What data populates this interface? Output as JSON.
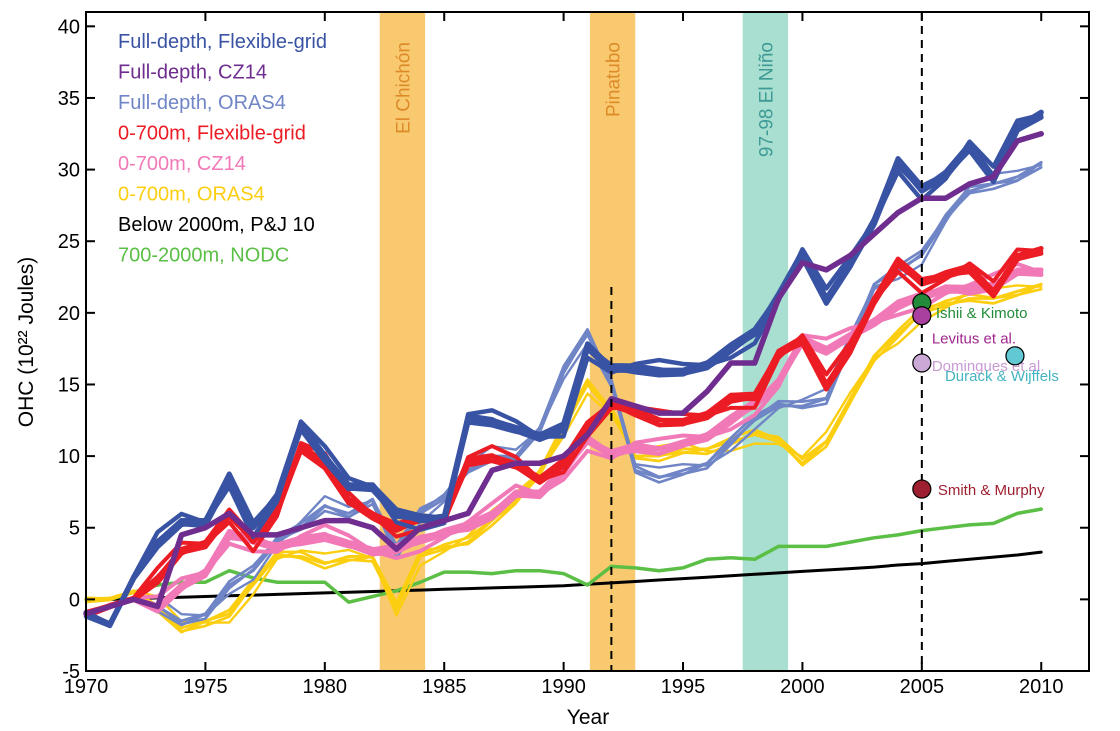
{
  "chart_data": {
    "type": "line",
    "xlabel": "Year",
    "ylabel": "OHC (10²² Joules)",
    "xlim": [
      1970,
      2012
    ],
    "ylim": [
      -5,
      41
    ],
    "xticks": [
      1970,
      1975,
      1980,
      1985,
      1990,
      1995,
      2000,
      2005,
      2010
    ],
    "yticks": [
      -5,
      0,
      5,
      10,
      15,
      20,
      25,
      30,
      35,
      40
    ],
    "x": [
      1970,
      1971,
      1972,
      1973,
      1974,
      1975,
      1976,
      1977,
      1978,
      1979,
      1980,
      1981,
      1982,
      1983,
      1984,
      1985,
      1986,
      1987,
      1988,
      1989,
      1990,
      1991,
      1992,
      1993,
      1994,
      1995,
      1996,
      1997,
      1998,
      1999,
      2000,
      2001,
      2002,
      2003,
      2004,
      2005,
      2006,
      2007,
      2008,
      2009,
      2010
    ],
    "grid": false,
    "legend_position": "top-left",
    "series": [
      {
        "name": "Full-depth, Flexible-grid",
        "color": "#3953a4",
        "width": 5.5,
        "values": [
          -1,
          -1.8,
          1.5,
          4,
          5.5,
          5.5,
          8.5,
          5,
          7,
          12,
          10,
          8,
          8,
          6,
          5.5,
          5.5,
          12.5,
          12.5,
          12,
          11.5,
          12,
          17.5,
          16,
          16,
          16,
          16,
          16.5,
          17.5,
          18.5,
          21,
          24,
          21,
          23.5,
          26.5,
          30.5,
          28.5,
          29.5,
          31.5,
          29.5,
          33,
          34
        ]
      },
      {
        "name": "Full-depth, CZ14",
        "color": "#6e2d8f",
        "width": 5.5,
        "values": [
          -1,
          -0.5,
          0,
          -0.5,
          4.5,
          5,
          6,
          4.5,
          4.5,
          5,
          5.5,
          5.5,
          5,
          3.5,
          5,
          5.5,
          6,
          9,
          9.5,
          9.5,
          10,
          11.5,
          14,
          13.5,
          13,
          13,
          14.5,
          16.5,
          16.5,
          21,
          23.5,
          23,
          24,
          25.5,
          27,
          28,
          28,
          29,
          29.5,
          32,
          32.5
        ]
      },
      {
        "name": "Full-depth, ORAS4",
        "color": "#6f85c6",
        "width": 3,
        "values": [
          -1,
          -0.5,
          0,
          -0.5,
          -1.5,
          -1,
          1,
          2,
          4,
          5,
          6.5,
          6,
          7,
          3.5,
          6,
          7,
          9,
          10,
          10,
          12,
          16,
          18.5,
          15,
          9,
          8.5,
          9,
          9.5,
          11,
          12.5,
          13.5,
          13.5,
          14,
          18,
          22,
          23,
          24,
          26.5,
          28.5,
          29,
          29.5,
          30.5
        ]
      },
      {
        "name": "0-700m, Flexible-grid",
        "color": "#ec1c24",
        "width": 5,
        "values": [
          -1,
          -0.5,
          0,
          1.5,
          3.5,
          4,
          6,
          4,
          6,
          10.5,
          9.5,
          7,
          6,
          5,
          5.5,
          5.5,
          9.5,
          10,
          9.5,
          8.5,
          9.5,
          12,
          13.5,
          13,
          12.5,
          12.5,
          13,
          14,
          14,
          17,
          18,
          15,
          17.5,
          21,
          23.5,
          22,
          22.5,
          23,
          21.5,
          24,
          24.5
        ]
      },
      {
        "name": "0-700m, CZ14",
        "color": "#f179b7",
        "width": 5,
        "values": [
          -1,
          -0.5,
          0,
          -0.5,
          1,
          2,
          4.5,
          4,
          3.5,
          4,
          4.5,
          4,
          3.5,
          3.5,
          4,
          4.5,
          5,
          6,
          7.5,
          7.5,
          9,
          11,
          10,
          10.5,
          10.5,
          11,
          11.5,
          12.5,
          13.5,
          15,
          18,
          17.5,
          18.5,
          19.5,
          20.5,
          21,
          21.5,
          21.5,
          22,
          23,
          23
        ]
      },
      {
        "name": "0-700m, ORAS4",
        "color": "#fcce10",
        "width": 3,
        "values": [
          0,
          0,
          0.5,
          -0.5,
          -2,
          -1.5,
          -1,
          1,
          3,
          3,
          2.5,
          3,
          3,
          -0.5,
          3,
          3.5,
          4,
          5.5,
          7,
          9,
          12,
          15,
          13,
          10,
          10,
          10.5,
          10.5,
          11,
          11.5,
          11,
          9.5,
          11,
          14,
          17,
          18.5,
          20,
          20.5,
          21,
          21,
          21.5,
          22
        ]
      },
      {
        "name": "Below 2000m, P&J 10",
        "color": "#000000",
        "width": 3,
        "values": [
          0,
          0,
          0.05,
          0.1,
          0.15,
          0.2,
          0.25,
          0.3,
          0.35,
          0.4,
          0.45,
          0.5,
          0.55,
          0.6,
          0.65,
          0.7,
          0.75,
          0.8,
          0.85,
          0.9,
          0.95,
          1.05,
          1.15,
          1.25,
          1.35,
          1.45,
          1.55,
          1.65,
          1.75,
          1.85,
          1.95,
          2.05,
          2.15,
          2.25,
          2.4,
          2.5,
          2.65,
          2.8,
          2.95,
          3.1,
          3.3
        ]
      },
      {
        "name": "700-2000m, NODC",
        "color": "#5bbf46",
        "width": 3.5,
        "values": [
          0,
          0,
          0.5,
          1,
          1.2,
          1.2,
          2,
          1.5,
          1.2,
          1.2,
          1.2,
          -0.2,
          0.2,
          0.6,
          1.2,
          1.9,
          1.9,
          1.8,
          2,
          2,
          1.8,
          1,
          2.3,
          2.2,
          2,
          2.2,
          2.8,
          2.9,
          2.8,
          3.7,
          3.7,
          3.7,
          4,
          4.3,
          4.5,
          4.8,
          5,
          5.2,
          5.3,
          6,
          6.3
        ]
      }
    ],
    "event_bands": [
      {
        "label": "El Chichón",
        "start": 1982.3,
        "end": 1984.2,
        "color": "#f9c96f",
        "text_color": "#dd8b28"
      },
      {
        "label": "Pinatubo",
        "start": 1991.1,
        "end": 1993.0,
        "color": "#f9c96f",
        "text_color": "#dd8b28"
      },
      {
        "label": "97-98 El Niño",
        "start": 1997.5,
        "end": 1999.4,
        "color": "#a9dfd0",
        "text_color": "#3d9a95"
      }
    ],
    "vlines": [
      {
        "x": 1992,
        "ymin": -5,
        "ymax": 21.8
      },
      {
        "x": 2005,
        "ymin": -5,
        "ymax": 41
      }
    ],
    "annotations": [
      {
        "label": "Ishii & Kimoto",
        "x": 2005,
        "y": 20.7,
        "color": "#228b3a",
        "text_color": "#228b3a"
      },
      {
        "label": "Levitus et al.",
        "x": 2005,
        "y": 19.8,
        "color": "#a93f9e",
        "text_color": "#a0288f"
      },
      {
        "label": "Domingues et al.",
        "x": 2005,
        "y": 16.5,
        "color": "#caa9d6",
        "text_color": "#c99bd4"
      },
      {
        "label": "Durack & Wijffels",
        "x": 2008.9,
        "y": 17,
        "color": "#62c8d3",
        "text_color": "#45b4c1"
      },
      {
        "label": "Smith & Murphy",
        "x": 2005,
        "y": 7.7,
        "color": "#9e1f2f",
        "text_color": "#9e1f2f"
      }
    ]
  }
}
